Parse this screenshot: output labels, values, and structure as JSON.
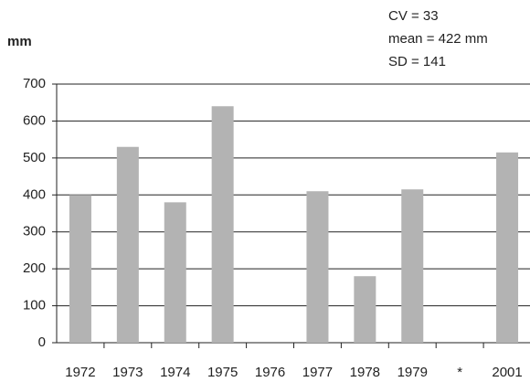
{
  "chart_data": {
    "type": "bar",
    "y_label": "mm",
    "annotations": [
      "CV = 33",
      "mean = 422 mm",
      "SD = 141"
    ],
    "categories": [
      "1972",
      "1973",
      "1974",
      "1975",
      "1976",
      "1977",
      "1978",
      "1979",
      "*",
      "2001"
    ],
    "values": [
      400,
      530,
      380,
      640,
      null,
      410,
      180,
      415,
      null,
      515
    ],
    "color": "#b3b3b3",
    "ylim": [
      0,
      700
    ],
    "yticks": [
      0,
      100,
      200,
      300,
      400,
      500,
      600,
      700
    ],
    "grid": true
  }
}
